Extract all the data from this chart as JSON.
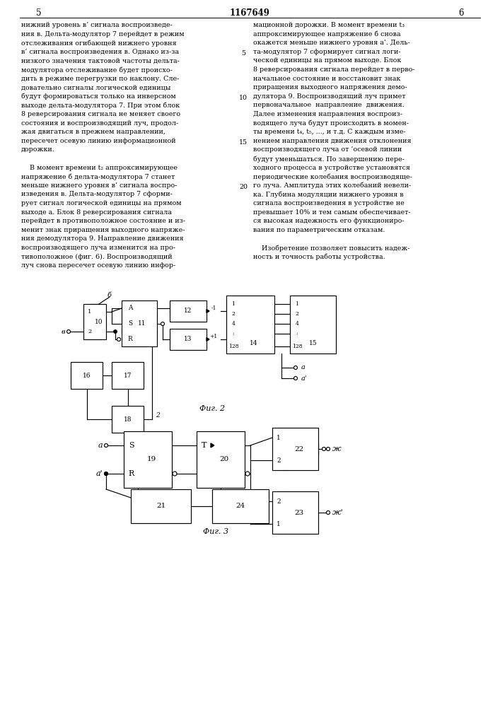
{
  "page_num_left": "5",
  "page_num_center": "1167649",
  "page_num_right": "6",
  "col1_lines": [
    "нижний уровень в’ сигнала воспроизведе-",
    "ния в. Дельта-модулятор 7 перейдет в режим",
    "отслеживания огибающей нижнего уровня",
    "в’ сигнала воспроизведения в. Однако из-за",
    "низкого значения тактовой частоты дельта-",
    "модулятора отслеживание будет происхо-",
    "дить в режиме перегрузки по наклону. Сле-",
    "довательно сигналы логической единицы",
    "будут формироваться только на инверсном",
    "выходе дельта-модулятора 7. При этом блок",
    "8 реверсирования сигнала не меняет своего",
    "состояния и воспроизводящий луч, продол-",
    "жая двигаться в прежнем направлении,",
    "пересечет осевую линию информационной",
    "дорожки.",
    "",
    "    В момент времени t₂ аппроксимирующее",
    "напряжение б дельта-модулятора 7 станет",
    "меньше нижнего уровня в’ сигнала воспро-",
    "изведения в. Дельта-модулятор 7 сформи-",
    "рует сигнал логической единицы на прямом",
    "выходе а. Блок 8 реверсирования сигнала",
    "перейдет в противоположное состояние и из-",
    "менит знак приращения выходного напряже-",
    "ния демодулятора 9. Направление движения",
    "воспроизводящего луча изменится на про-",
    "тивоположное (фиг. 6). Воспроизводящий",
    "луч снова пересечет осевую линию инфор-"
  ],
  "col2_lines": [
    "мационной дорожки. В момент времени t₃",
    "аппроксимирующее напряжение б снова",
    "окажется меньше нижнего уровня а’. Дель-",
    "та-модулятор 7 сформирует сигнал логи-",
    "ческой единицы на прямом выходе. Блок",
    "8 реверсирования сигнала перейдет в перво-",
    "начальное состояние и восстановит знак",
    "приращения выходного напряжения демо-",
    "дулятора 9. Воспроизводящий луч примет",
    "первоначальное  направление  движения.",
    "Далее изменения направления воспроиз-",
    "водящего луча будут происходить в момен-",
    "ты времени t₄, t₅, ..., и т.д. С каждым изме-",
    "нением направления движения отклонения",
    "воспроизводящего луча от ’осевой линии",
    "будут уменьшаться. По завершению пере-",
    "ходного процесса в устройстве установятся",
    "периодические колебания воспроизводяще-",
    "го луча. Амплитуда этих колебаний невели-",
    "ка. Глубина модуляции нижнего уровня в",
    "сигнала воспроизведения в устройстве не",
    "превышает 10% и тем самым обеспечивает-",
    "ся высокая надежность его функциониро-",
    "вания по параметрическим отказам.",
    "",
    "    Изобретение позволяет повысить надеж-",
    "ность и точность работы устройства."
  ],
  "background": "#ffffff"
}
